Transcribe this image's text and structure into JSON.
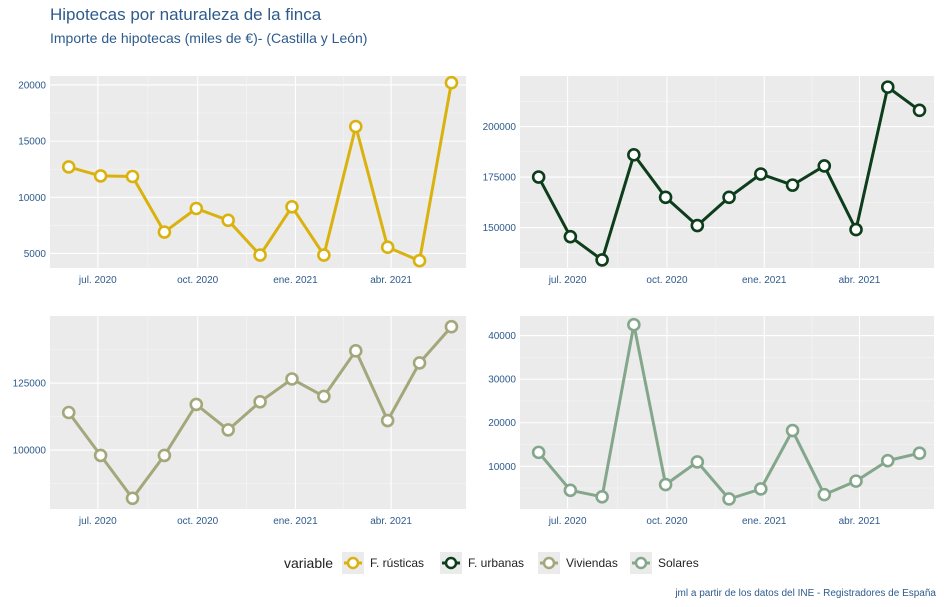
{
  "title": "Hipotecas por naturaleza de la finca",
  "subtitle": "Importe de hipotecas (miles de €)- (Castilla y León)",
  "caption": "jml a partir de los datos del INE - Registradores de España",
  "legend": {
    "title": "variable",
    "labels": [
      "F. rústicas",
      "F. urbanas",
      "Viviendas",
      "Solares"
    ]
  },
  "chart_data": [
    {
      "type": "line",
      "series_name": "F. rústicas",
      "color": "#dab20f",
      "x_tick_labels": [
        "jul. 2020",
        "oct. 2020",
        "ene. 2021",
        "abr. 2021"
      ],
      "y_ticks": [
        5000,
        10000,
        15000,
        20000
      ],
      "ylim": [
        3700,
        20800
      ],
      "values": [
        12700,
        11900,
        11850,
        6900,
        9000,
        7950,
        4850,
        9150,
        4850,
        16300,
        5550,
        4350,
        20200
      ]
    },
    {
      "type": "line",
      "series_name": "F. urbanas",
      "color": "#0d3d1b",
      "x_tick_labels": [
        "jul. 2020",
        "oct. 2020",
        "ene. 2021",
        "abr. 2021"
      ],
      "y_ticks": [
        150000,
        175000,
        200000
      ],
      "ylim": [
        130000,
        225000
      ],
      "values": [
        175000,
        145500,
        134000,
        186000,
        165000,
        151000,
        165000,
        176500,
        171000,
        180500,
        149000,
        219500,
        208000
      ]
    },
    {
      "type": "line",
      "series_name": "Viviendas",
      "color": "#a3a77a",
      "x_tick_labels": [
        "jul. 2020",
        "oct. 2020",
        "ene. 2021",
        "abr. 2021"
      ],
      "y_ticks": [
        100000,
        125000
      ],
      "ylim": [
        78000,
        150000
      ],
      "values": [
        114000,
        98000,
        82000,
        98000,
        117000,
        107500,
        118000,
        126500,
        120000,
        137000,
        111000,
        132500,
        146000
      ]
    },
    {
      "type": "line",
      "series_name": "Solares",
      "color": "#84a68b",
      "x_tick_labels": [
        "jul. 2020",
        "oct. 2020",
        "ene. 2021",
        "abr. 2021"
      ],
      "y_ticks": [
        10000,
        20000,
        30000,
        40000
      ],
      "ylim": [
        200,
        44500
      ],
      "values": [
        13200,
        4500,
        3000,
        42500,
        5800,
        11000,
        2500,
        4800,
        18200,
        3500,
        6600,
        11300,
        13000
      ]
    }
  ]
}
